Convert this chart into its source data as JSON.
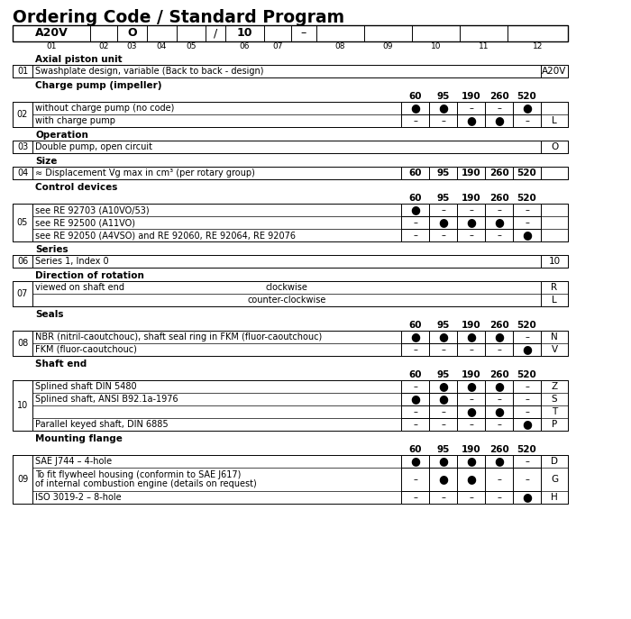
{
  "title": "Ordering Code / Standard Program",
  "sections": [
    {
      "label": "Axial piston unit",
      "size_header": null,
      "groups": [
        {
          "num": "01",
          "rows": [
            {
              "text": "Swashplate design, variable (Back to back - design)",
              "cols": null,
              "code": "A20V",
              "dir": null,
              "tall": false
            }
          ]
        }
      ]
    },
    {
      "label": "Charge pump (impeller)",
      "size_header": [
        "60",
        "95",
        "190",
        "260",
        "520"
      ],
      "groups": [
        {
          "num": "02",
          "rows": [
            {
              "text": "without charge pump (no code)",
              "cols": [
                "●",
                "●",
                "–",
                "–",
                "●"
              ],
              "code": "",
              "dir": null,
              "tall": false
            },
            {
              "text": "with charge pump",
              "cols": [
                "–",
                "–",
                "●",
                "●",
                "–"
              ],
              "code": "L",
              "dir": null,
              "tall": false
            }
          ]
        }
      ]
    },
    {
      "label": "Operation",
      "size_header": null,
      "groups": [
        {
          "num": "03",
          "rows": [
            {
              "text": "Double pump, open circuit",
              "cols": null,
              "code": "O",
              "dir": null,
              "tall": false
            }
          ]
        }
      ]
    },
    {
      "label": "Size",
      "size_header": null,
      "groups": [
        {
          "num": "04",
          "rows": [
            {
              "text": "≈ Displacement Vg max in cm³ (per rotary group)",
              "cols": [
                "60",
                "95",
                "190",
                "260",
                "520"
              ],
              "code": "",
              "dir": null,
              "tall": false,
              "size_row": true
            }
          ]
        }
      ]
    },
    {
      "label": "Control devices",
      "size_header": [
        "60",
        "95",
        "190",
        "260",
        "520"
      ],
      "groups": [
        {
          "num": "05",
          "rows": [
            {
              "text": "see RE 92703 (A10VO/53)",
              "cols": [
                "●",
                "–",
                "–",
                "–",
                "–"
              ],
              "code": "",
              "dir": null,
              "tall": false
            },
            {
              "text": "see RE 92500 (A11VO)",
              "cols": [
                "–",
                "●",
                "●",
                "●",
                "–"
              ],
              "code": "",
              "dir": null,
              "tall": false
            },
            {
              "text": "see RE 92050 (A4VSO) and RE 92060, RE 92064, RE 92076",
              "cols": [
                "–",
                "–",
                "–",
                "–",
                "●"
              ],
              "code": "",
              "dir": null,
              "tall": false
            }
          ]
        }
      ]
    },
    {
      "label": "Series",
      "size_header": null,
      "groups": [
        {
          "num": "06",
          "rows": [
            {
              "text": "Series 1, Index 0",
              "cols": null,
              "code": "10",
              "dir": null,
              "tall": false
            }
          ]
        }
      ]
    },
    {
      "label": "Direction of rotation",
      "size_header": null,
      "groups": [
        {
          "num": "07",
          "rows": [
            {
              "text": "viewed on shaft end",
              "cols": null,
              "code": "R",
              "dir": "clockwise",
              "tall": false
            },
            {
              "text": "",
              "cols": null,
              "code": "L",
              "dir": "counter-clockwise",
              "tall": false
            }
          ]
        }
      ]
    },
    {
      "label": "Seals",
      "size_header": [
        "60",
        "95",
        "190",
        "260",
        "520"
      ],
      "groups": [
        {
          "num": "08",
          "rows": [
            {
              "text": "NBR (nitril-caoutchouc), shaft seal ring in FKM (fluor-caoutchouc)",
              "cols": [
                "●",
                "●",
                "●",
                "●",
                "–"
              ],
              "code": "N",
              "dir": null,
              "tall": false
            },
            {
              "text": "FKM (fluor-caoutchouc)",
              "cols": [
                "–",
                "–",
                "–",
                "–",
                "●"
              ],
              "code": "V",
              "dir": null,
              "tall": false
            }
          ]
        }
      ]
    },
    {
      "label": "Shaft end",
      "size_header": [
        "60",
        "95",
        "190",
        "260",
        "520"
      ],
      "groups": [
        {
          "num": "10",
          "rows": [
            {
              "text": "Splined shaft DIN 5480",
              "cols": [
                "–",
                "●",
                "●",
                "●",
                "–"
              ],
              "code": "Z",
              "dir": null,
              "tall": false
            },
            {
              "text": "Splined shaft, ANSI B92.1a-1976",
              "cols": [
                "●",
                "●",
                "–",
                "–",
                "–"
              ],
              "code": "S",
              "dir": null,
              "tall": false
            },
            {
              "text": "",
              "cols": [
                "–",
                "–",
                "●",
                "●",
                "–"
              ],
              "code": "T",
              "dir": null,
              "tall": false
            },
            {
              "text": "Parallel keyed shaft, DIN 6885",
              "cols": [
                "–",
                "–",
                "–",
                "–",
                "●"
              ],
              "code": "P",
              "dir": null,
              "tall": false
            }
          ]
        }
      ]
    },
    {
      "label": "Mounting flange",
      "size_header": [
        "60",
        "95",
        "190",
        "260",
        "520"
      ],
      "groups": [
        {
          "num": "09",
          "rows": [
            {
              "text": "SAE J744 – 4-hole",
              "cols": [
                "●",
                "●",
                "●",
                "●",
                "–"
              ],
              "code": "D",
              "dir": null,
              "tall": false
            },
            {
              "text": "To fit flywheel housing (conformin to SAE J617)\nof internal combustion engine (details on request)",
              "cols": [
                "–",
                "●",
                "●",
                "–",
                "–"
              ],
              "code": "G",
              "dir": null,
              "tall": true
            },
            {
              "text": "ISO 3019-2 – 8-hole",
              "cols": [
                "–",
                "–",
                "–",
                "–",
                "●"
              ],
              "code": "H",
              "dir": null,
              "tall": false
            }
          ]
        }
      ]
    }
  ],
  "hdr_xbreaks": [
    14,
    100,
    130,
    163,
    196,
    228,
    250,
    293,
    323,
    351,
    404,
    457,
    510,
    563,
    630
  ],
  "hdr_cells": [
    "A20V",
    "",
    "O",
    "",
    "",
    "/",
    "10",
    "",
    "–",
    "",
    "",
    "",
    "",
    ""
  ],
  "hdr_nums": [
    "01",
    "02",
    "03",
    "04",
    "05",
    "",
    "06",
    "07",
    "",
    "08",
    "09",
    "10",
    "11",
    "12"
  ]
}
